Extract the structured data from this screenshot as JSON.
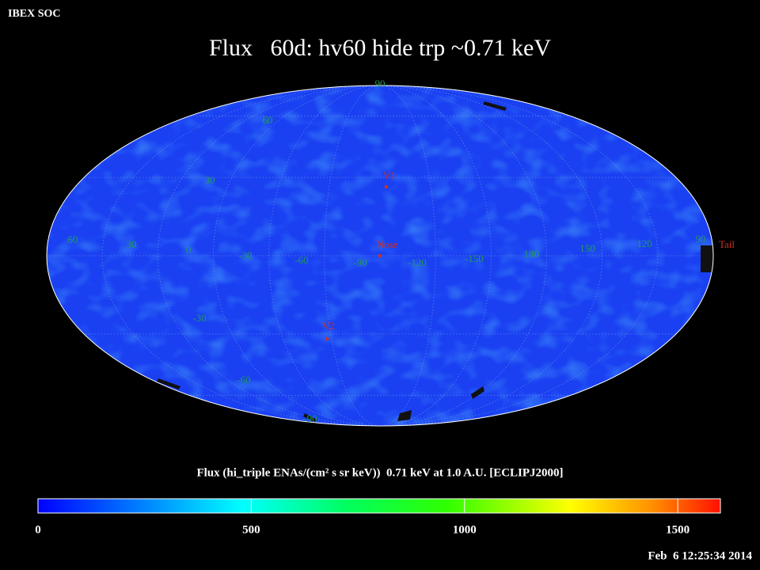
{
  "header": {
    "org": "IBEX SOC",
    "title": "Flux   60d: hv60 hide trp ~0.71 keV"
  },
  "map": {
    "lat_labels": [
      "90",
      "60",
      "30",
      "-30",
      "-60",
      "-90"
    ],
    "lon_labels": [
      "60",
      "30",
      "0",
      "-30",
      "-60",
      "-90",
      "-120",
      "-150",
      "180",
      "150",
      "120",
      "90"
    ],
    "markers": [
      "V1",
      "Nose",
      "V2",
      "Tail"
    ]
  },
  "colorbar": {
    "label": "Flux (hi_triple ENAs/(cm² s sr keV))  0.71 keV at 1.0 A.U. [ECLIPJ2000]",
    "range": [
      0,
      1600
    ],
    "ticks": [
      0,
      500,
      1000,
      1500
    ]
  },
  "timestamp": "Feb  6 12:25:34 2014"
}
